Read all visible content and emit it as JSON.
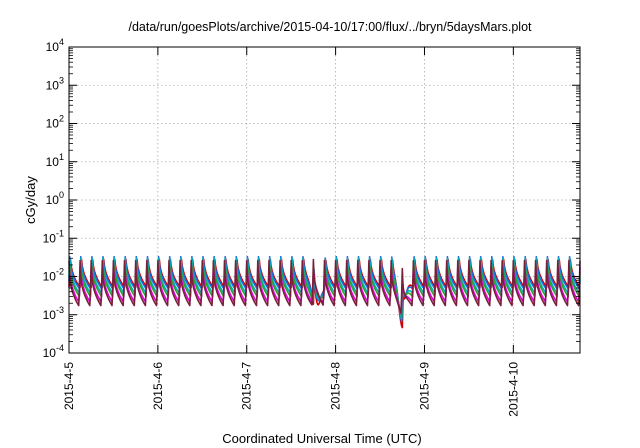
{
  "chart_data": {
    "type": "line",
    "title": "/data/run/goesPlots/archive/2015-04-10/17:00/flux/../bryn/5daysMars.plot",
    "xlabel": "Coordinated Universal Time (UTC)",
    "ylabel": "cGy/day",
    "yscale": "log",
    "ylim_exponents": [
      -4,
      4
    ],
    "y_tick_labels": [
      {
        "base": "10",
        "exp": "-4"
      },
      {
        "base": "10",
        "exp": "-3"
      },
      {
        "base": "10",
        "exp": "-2"
      },
      {
        "base": "10",
        "exp": "-1"
      },
      {
        "base": "10",
        "exp": "0"
      },
      {
        "base": "10",
        "exp": "1"
      },
      {
        "base": "10",
        "exp": "2"
      },
      {
        "base": "10",
        "exp": "3"
      },
      {
        "base": "10",
        "exp": "4"
      }
    ],
    "x_tick_labels": [
      "2015-4-5",
      "2015-4-6",
      "2015-4-7",
      "2015-4-8",
      "2015-4-9",
      "2015-4-10"
    ],
    "xlim": [
      "2015-04-05T00:00",
      "2015-04-10T18:00"
    ],
    "grid": true,
    "legend": "none",
    "pulses_per_day": 8,
    "dips": [
      {
        "time": "2015-04-07T19:00",
        "min_value": 0.0006
      },
      {
        "time": "2015-04-08T18:00",
        "min_value": 0.0003
      }
    ],
    "series": [
      {
        "color": "#d00000",
        "peak": 0.055,
        "base": 0.0052
      },
      {
        "color": "#1e6fdf",
        "peak": 0.05,
        "base": 0.0046
      },
      {
        "color": "#00b4b4",
        "peak": 0.04,
        "base": 0.0036
      },
      {
        "color": "#2ca02c",
        "peak": 0.036,
        "base": 0.003
      },
      {
        "color": "#e000e0",
        "peak": 0.03,
        "base": 0.0021
      },
      {
        "color": "#7a1f3a",
        "peak": 0.026,
        "base": 0.0017
      }
    ]
  }
}
